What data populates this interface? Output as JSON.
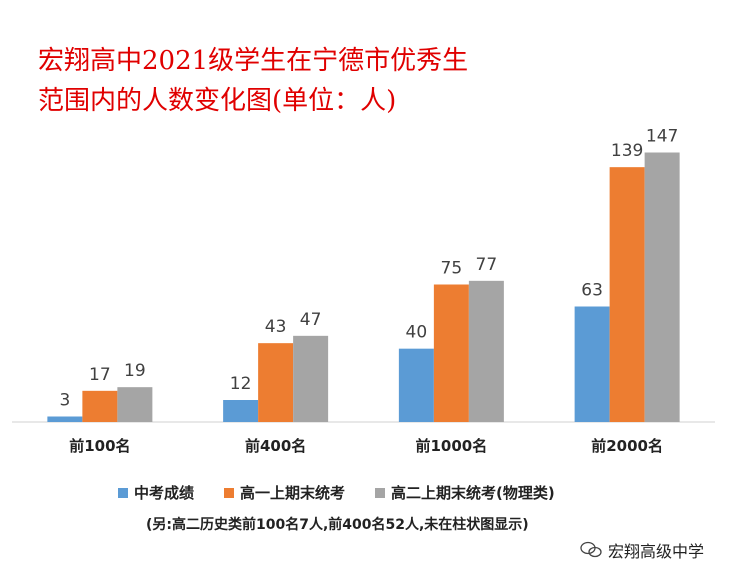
{
  "title_line1": "宏翔高中2021级学生在宁德市优秀生",
  "title_line2": "范围内的人数变化图(单位：人)",
  "chart_data": {
    "type": "bar",
    "categories": [
      "前100名",
      "前400名",
      "前1000名",
      "前2000名"
    ],
    "series": [
      {
        "name": "中考成绩",
        "values": [
          3,
          12,
          40,
          63
        ],
        "color": "#5b9bd5"
      },
      {
        "name": "高一上期末统考",
        "values": [
          17,
          43,
          75,
          139
        ],
        "color": "#ed7d31"
      },
      {
        "name": "高二上期末统考(物理类)",
        "values": [
          19,
          47,
          77,
          147
        ],
        "color": "#a5a5a5"
      }
    ],
    "ylim": [
      0,
      150
    ],
    "grid": false,
    "legend": "bottom"
  },
  "note": "(另:高二历史类前100名7人,前400名52人,未在柱状图显示)",
  "watermark": "宏翔高级中学"
}
